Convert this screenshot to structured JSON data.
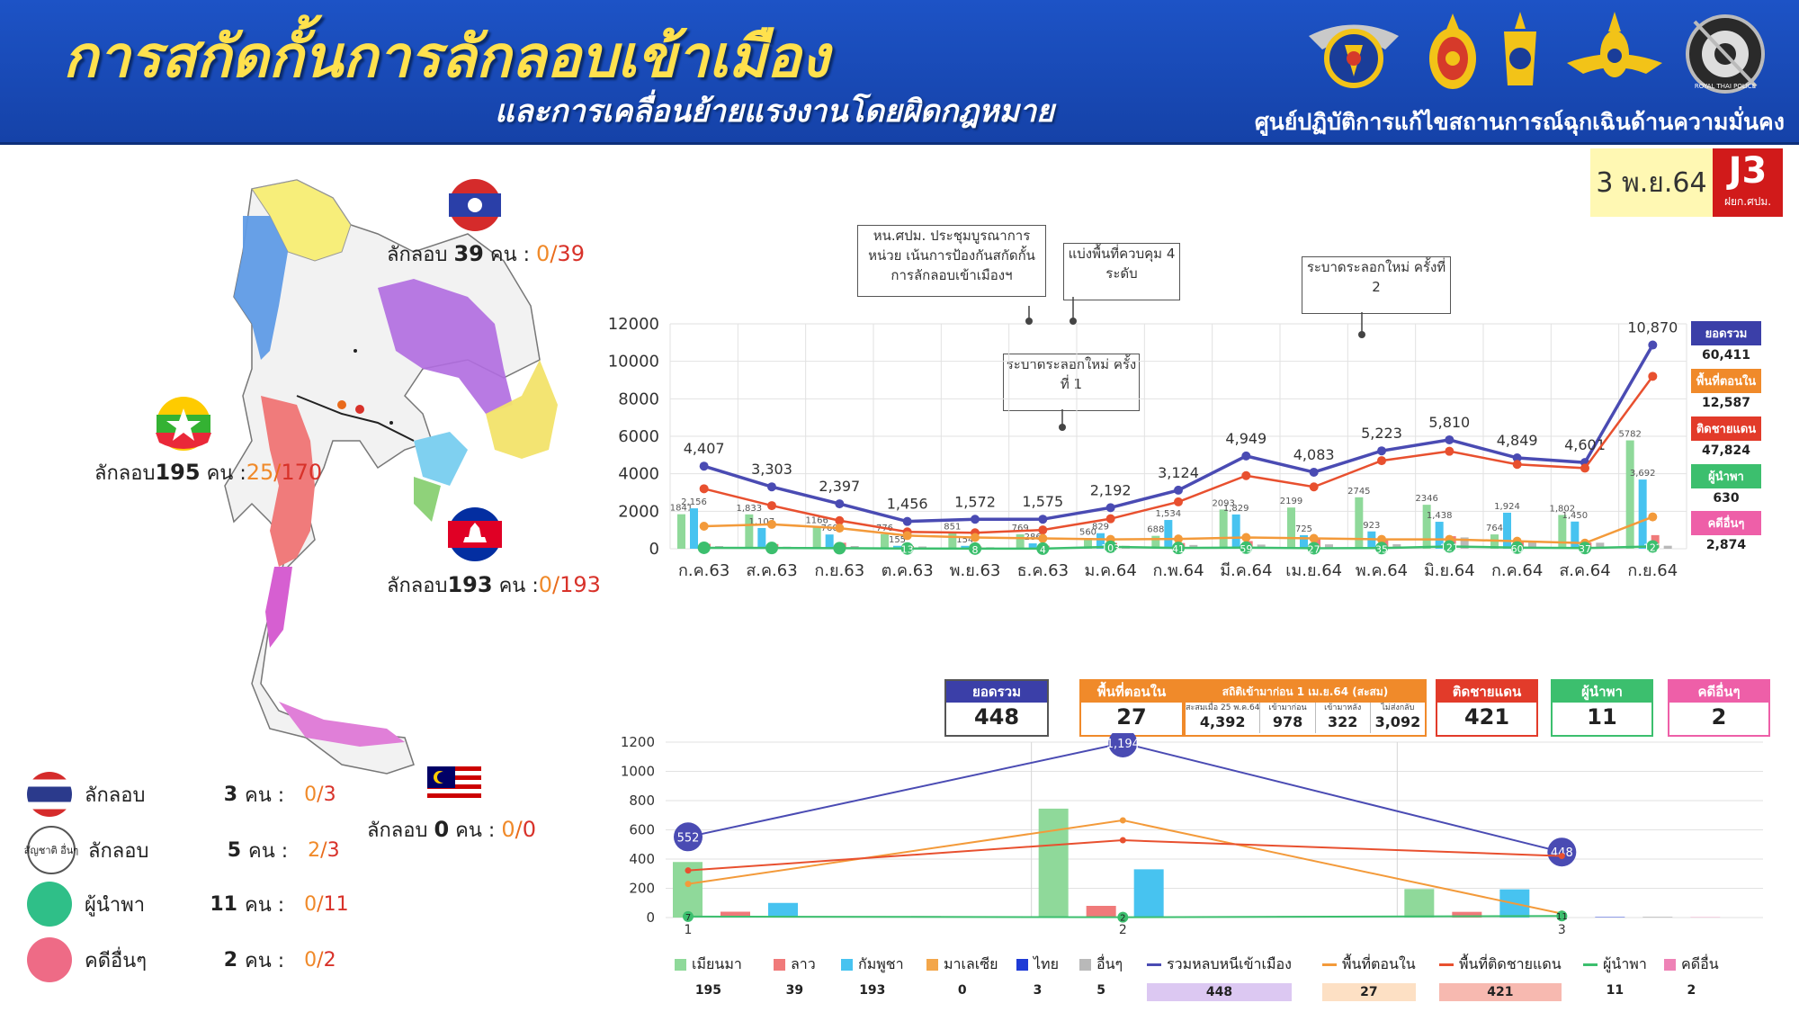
{
  "header": {
    "title": "การสกัดกั้นการลักลอบเข้าเมือง",
    "subtitle": "และการเคลื่อนย้ายแรงงานโดยผิดกฎหมาย",
    "org": "ศูนย์ปฏิบัติการแก้ไขสถานการณ์ฉุกเฉินด้านความมั่นคง",
    "date": "3 พ.ย.64",
    "badge": "J3",
    "badge_sub": "ฝยก.ศปม.",
    "police_emblem_text": "ROYAL THAI POLICE"
  },
  "map": {
    "laos": {
      "label": "ลักลอบ",
      "count": "39",
      "unit": "คน :",
      "left": "0",
      "right": "39"
    },
    "myanmar": {
      "label": "ลักลอบ",
      "count": "195",
      "unit": "คน :",
      "left": "25",
      "right": "170"
    },
    "cambodia": {
      "label": "ลักลอบ",
      "count": "193",
      "unit": "คน :",
      "left": "0",
      "right": "193"
    },
    "malaysia": {
      "label": "ลักลอบ",
      "count": "0",
      "unit": "คน :",
      "left": "0",
      "right": "0"
    }
  },
  "left_legend": [
    {
      "name": "thai",
      "label": "ลักลอบ",
      "count": "3",
      "unit": "คน :",
      "left": "0",
      "right": "3",
      "color": "#2b3a8c"
    },
    {
      "name": "other-nationality",
      "label": "ลักลอบ",
      "count": "5",
      "unit": "คน :",
      "left": "2",
      "right": "3",
      "color": "#ffffff",
      "disc_text": "สัญชาติ อื่นๆ"
    },
    {
      "name": "guide",
      "label": "ผู้นำพา",
      "count": "11",
      "unit": "คน :",
      "left": "0",
      "right": "11",
      "color": "#2fbf88"
    },
    {
      "name": "other-case",
      "label": "คดีอื่นๆ",
      "count": "2",
      "unit": "คน :",
      "left": "0",
      "right": "2",
      "color": "#ee6b86"
    }
  ],
  "chart_data": [
    {
      "type": "line",
      "categories": [
        "ก.ค.63",
        "ส.ค.63",
        "ก.ย.63",
        "ต.ค.63",
        "พ.ย.63",
        "ธ.ค.63",
        "ม.ค.64",
        "ก.พ.64",
        "มี.ค.64",
        "เม.ย.64",
        "พ.ค.64",
        "มิ.ย.64",
        "ก.ค.64",
        "ส.ค.64",
        "ก.ย.64"
      ],
      "ylim": [
        0,
        12000
      ],
      "yticks": [
        0,
        2000,
        4000,
        6000,
        8000,
        10000,
        12000
      ],
      "series": [
        {
          "name": "ยอดรวม",
          "color": "#4a4bb3",
          "labels": [
            "4,407",
            "3,303",
            "2,397",
            "1,456",
            "1,572",
            "1,575",
            "2,192",
            "3,124",
            "4,949",
            "4,083",
            "5,223",
            "5,810",
            "4,849",
            "4,601",
            "10,870"
          ],
          "values": [
            4407,
            3303,
            2397,
            1456,
            1572,
            1575,
            2192,
            3124,
            4949,
            4083,
            5223,
            5810,
            4849,
            4601,
            10870
          ]
        },
        {
          "name": "ติดชายแดน",
          "color": "#e8502f",
          "values": [
            3200,
            2300,
            1500,
            900,
            850,
            1000,
            1600,
            2500,
            3900,
            3300,
            4700,
            5200,
            4500,
            4300,
            9200
          ]
        },
        {
          "name": "พื้นที่ตอนใน",
          "color": "#f39a3a",
          "values": [
            1200,
            1300,
            1100,
            700,
            600,
            550,
            500,
            520,
            600,
            550,
            500,
            500,
            400,
            300,
            1700
          ]
        },
        {
          "name": "ผู้นำพา",
          "color": "#3cbf6e",
          "labels": [
            "",
            "",
            "",
            "13",
            "8",
            "4",
            "103",
            "41",
            "59",
            "27",
            "35",
            "121",
            "60",
            "37",
            "122"
          ],
          "values": [
            50,
            40,
            30,
            13,
            8,
            4,
            103,
            41,
            59,
            27,
            35,
            121,
            60,
            37,
            122
          ]
        }
      ],
      "bars": {
        "เมียนมา": {
          "color": "#8fd99a",
          "values": [
            1841,
            1833,
            1166,
            776,
            851,
            769,
            560,
            688,
            2093,
            2199,
            2745,
            2346,
            764,
            1802,
            5782
          ],
          "labels": [
            "1841",
            "1,833",
            "1166",
            "776",
            "851",
            "769",
            "560",
            "688",
            "2093",
            "2199",
            "2745",
            "2346",
            "764",
            "1,802",
            "5782"
          ]
        },
        "กัมพูชา": {
          "color": "#47c3f0",
          "values": [
            2156,
            1107,
            760,
            155,
            154,
            286,
            829,
            1534,
            1829,
            725,
            923,
            1438,
            1924,
            1450,
            3692
          ],
          "labels": [
            "2,156",
            "1,107",
            "760",
            "155",
            "154",
            "286",
            "829",
            "1,534",
            "1,829",
            "725",
            "923",
            "1,438",
            "1,924",
            "1,450",
            "3,692"
          ]
        },
        "ลาว": {
          "color": "#f07a7a",
          "values": [
            262,
            250,
            320,
            144,
            118,
            159,
            313,
            305,
            410,
            568,
            497,
            669,
            373,
            327,
            726
          ]
        },
        "อื่นๆ": {
          "color": "#b9b9b9",
          "values": [
            143,
            108,
            144,
            120,
            80,
            60,
            156,
            200,
            221,
            233,
            241,
            604,
            348,
            321,
            159
          ]
        },
        "ไทย": {
          "color": "#1f3bd6",
          "values": [
            0,
            0,
            0,
            0,
            0,
            0,
            0,
            0,
            0,
            0,
            0,
            0,
            0,
            0,
            0
          ]
        }
      },
      "annotations": [
        {
          "text": "หน.ศปม. ประชุมบูรณาการหน่วย เน้นการป้องกันสกัดกั้น การลักลอบเข้าเมืองฯ",
          "at": "ธ.ค.63"
        },
        {
          "text": "แบ่งพื้นที่ควบคุม 4 ระดับ",
          "at": "ธ.ค.63"
        },
        {
          "text": "ระบาดระลอกใหม่ ครั้งที่ 1",
          "at": "ธ.ค.63"
        },
        {
          "text": "ระบาดระลอกใหม่ ครั้งที่ 2",
          "at": "พ.ค.64"
        }
      ]
    },
    {
      "type": "line",
      "categories": [
        "1",
        "2",
        "3"
      ],
      "ylim": [
        0,
        1200
      ],
      "yticks": [
        0,
        200,
        400,
        600,
        800,
        1000,
        1200
      ],
      "series": [
        {
          "name": "รวมหลบหนีเข้าเมือง",
          "color": "#4a4bb3",
          "values": [
            552,
            1194,
            448
          ],
          "labels": [
            "552",
            "1,194",
            "448"
          ]
        },
        {
          "name": "พื้นที่ตอนใน",
          "color": "#f39a3a",
          "values": [
            230,
            665,
            27
          ]
        },
        {
          "name": "พื้นที่ติดชายแดน",
          "color": "#e8502f",
          "values": [
            322,
            529,
            421
          ]
        },
        {
          "name": "ผู้นำพา",
          "color": "#3cbf6e",
          "values": [
            7,
            2,
            11
          ],
          "labels": [
            "7",
            "2",
            "11"
          ]
        }
      ],
      "bars": {
        "เมียนมา": {
          "color": "#8fd99a",
          "values": [
            380,
            745,
            195
          ]
        },
        "ลาว": {
          "color": "#f07a7a",
          "values": [
            40,
            80,
            39
          ]
        },
        "กัมพูชา": {
          "color": "#47c3f0",
          "values": [
            100,
            330,
            193
          ]
        },
        "มาเลเซีย": {
          "color": "#f3a64a",
          "values": [
            0,
            0,
            0
          ]
        },
        "ไทย": {
          "color": "#1f3bd6",
          "values": [
            0,
            0,
            3
          ]
        },
        "อื่นๆ": {
          "color": "#b9b9b9",
          "values": [
            10,
            10,
            5
          ]
        },
        "คดีอื่น": {
          "color": "#ee82b6",
          "values": [
            0,
            0,
            2
          ]
        }
      }
    }
  ],
  "side_legend": [
    {
      "name": "ยอดรวม",
      "value": "60,411",
      "color": "#3b3fa8"
    },
    {
      "name": "พื้นที่ตอนใน",
      "value": "12,587",
      "color": "#f08a2a"
    },
    {
      "name": "ติดชายแดน",
      "value": "47,824",
      "color": "#e23b2a"
    },
    {
      "name": "ผู้นำพา",
      "value": "630",
      "color": "#3cbf6e"
    },
    {
      "name": "คดีอื่นๆ",
      "value": "2,874",
      "color": "#ee5fa8"
    }
  ],
  "summary": {
    "total": {
      "label": "ยอดรวม",
      "value": "448",
      "color": "#3b3fa8"
    },
    "inner": {
      "label": "พื้นที่ตอนใน",
      "value": "27",
      "color": "#f08a2a"
    },
    "stats": {
      "label": "สถิติเข้ามาก่อน 1 เม.ย.64 (สะสม)",
      "color": "#f08a2a",
      "cols": [
        {
          "label": "สะสมเมื่อ 25 พ.ค.64",
          "value": "4,392"
        },
        {
          "label": "เข้ามาก่อน",
          "value": "978"
        },
        {
          "label": "เข้ามาหลัง",
          "value": "322"
        },
        {
          "label": "ไม่ส่งกลับ",
          "value": "3,092"
        }
      ]
    },
    "border": {
      "label": "ติดชายแดน",
      "value": "421",
      "color": "#e23b2a"
    },
    "guide": {
      "label": "ผู้นำพา",
      "value": "11",
      "color": "#3cbf6e"
    },
    "other": {
      "label": "คดีอื่นๆ",
      "value": "2",
      "color": "#ee5fa8"
    }
  },
  "bottom_legend": [
    {
      "label": "เมียนมา",
      "value": "195",
      "color": "#8fd99a",
      "kind": "bar"
    },
    {
      "label": "ลาว",
      "value": "39",
      "color": "#f07a7a",
      "kind": "bar"
    },
    {
      "label": "กัมพูชา",
      "value": "193",
      "color": "#47c3f0",
      "kind": "bar"
    },
    {
      "label": "มาเลเซีย",
      "value": "0",
      "color": "#f3a64a",
      "kind": "bar"
    },
    {
      "label": "ไทย",
      "value": "3",
      "color": "#1f3bd6",
      "kind": "bar"
    },
    {
      "label": "อื่นๆ",
      "value": "5",
      "color": "#b9b9b9",
      "kind": "bar"
    },
    {
      "label": "รวมหลบหนีเข้าเมือง",
      "value": "448",
      "color": "#4a4bb3",
      "kind": "line",
      "hl": "#dcc8f2"
    },
    {
      "label": "พื้นที่ตอนใน",
      "value": "27",
      "color": "#f39a3a",
      "kind": "line",
      "hl": "#fde0c4"
    },
    {
      "label": "พื้นที่ติดชายแดน",
      "value": "421",
      "color": "#e8502f",
      "kind": "line",
      "hl": "#f7b9b0"
    },
    {
      "label": "ผู้นำพา",
      "value": "11",
      "color": "#3cbf6e",
      "kind": "line"
    },
    {
      "label": "คดีอื่น",
      "value": "2",
      "color": "#ee82b6",
      "kind": "bar"
    }
  ]
}
